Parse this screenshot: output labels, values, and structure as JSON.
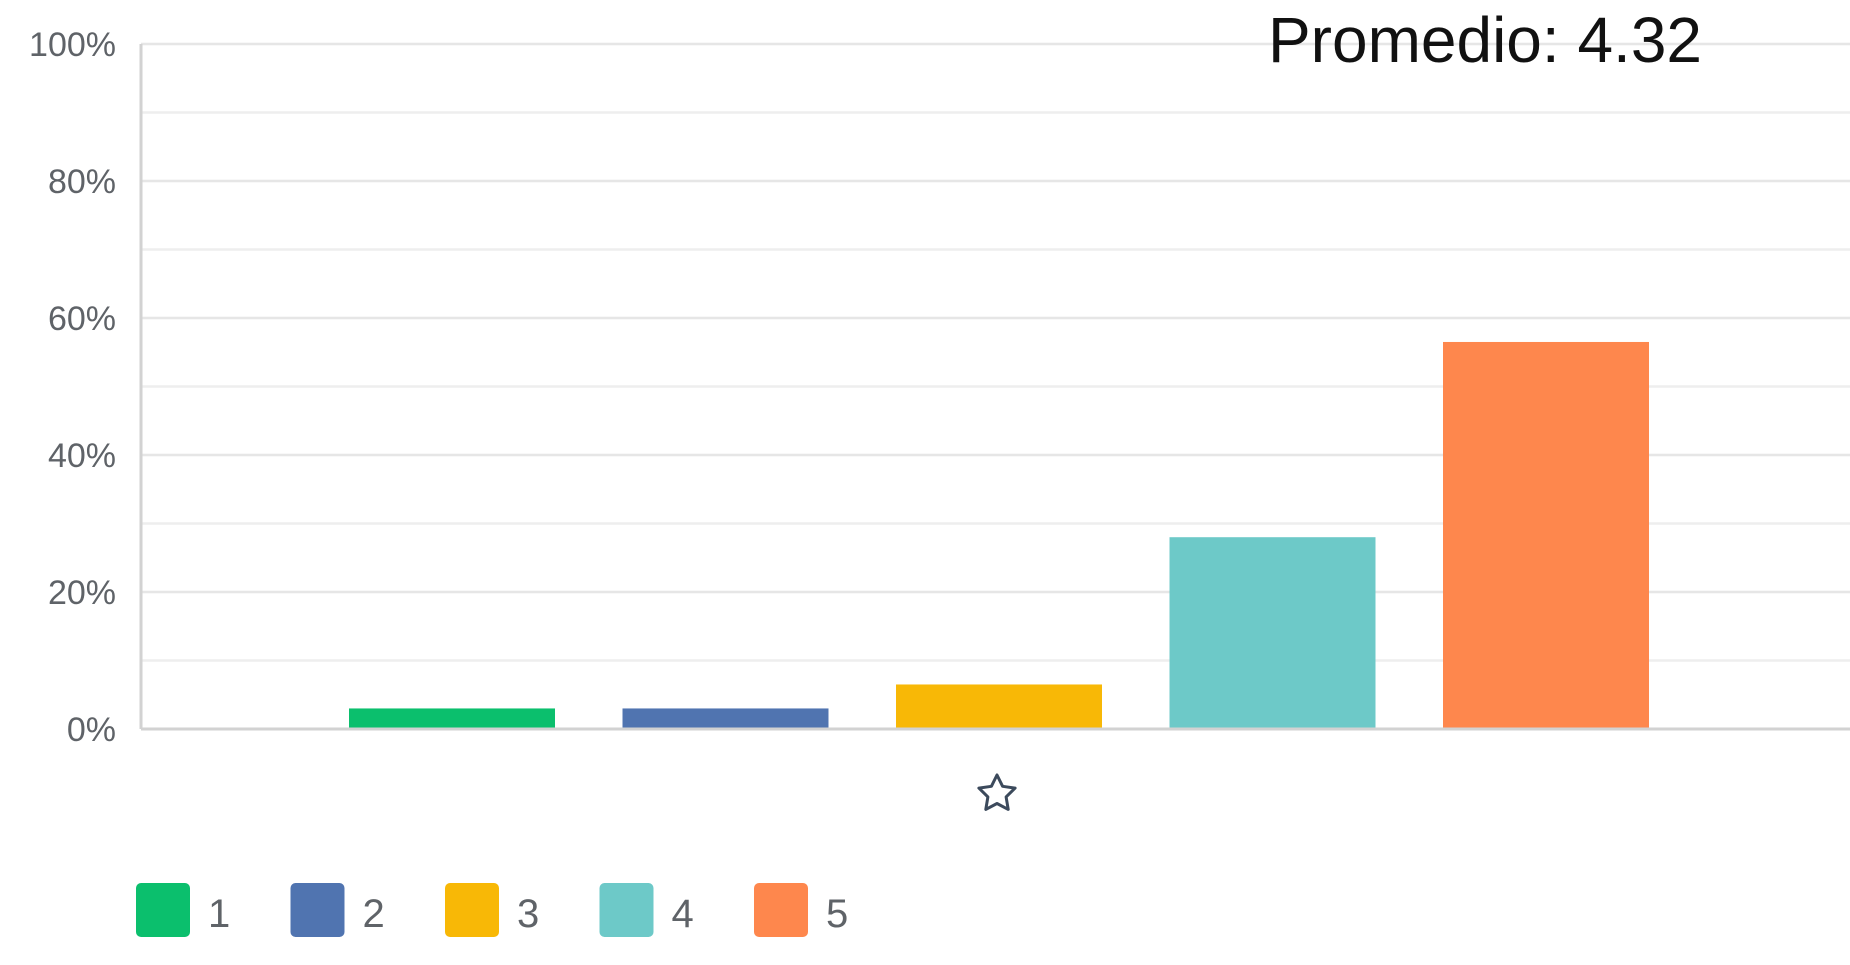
{
  "chart_data": {
    "type": "bar",
    "categories": [
      "1",
      "2",
      "3",
      "4",
      "5"
    ],
    "values": [
      3,
      3,
      6.5,
      28,
      56.5
    ],
    "colors": [
      "#0bbf6d",
      "#5074b0",
      "#f8b806",
      "#6dc9c8",
      "#fe874d"
    ],
    "ylim": [
      0,
      100
    ],
    "yticks": [
      "0%",
      "20%",
      "40%",
      "60%",
      "80%",
      "100%"
    ],
    "title": "",
    "xlabel": "",
    "ylabel": "",
    "grid": true,
    "legend_placement": "bottom-left",
    "x_axis_icon": "star-outline-icon",
    "annotation": "Promedio: 4.32"
  }
}
